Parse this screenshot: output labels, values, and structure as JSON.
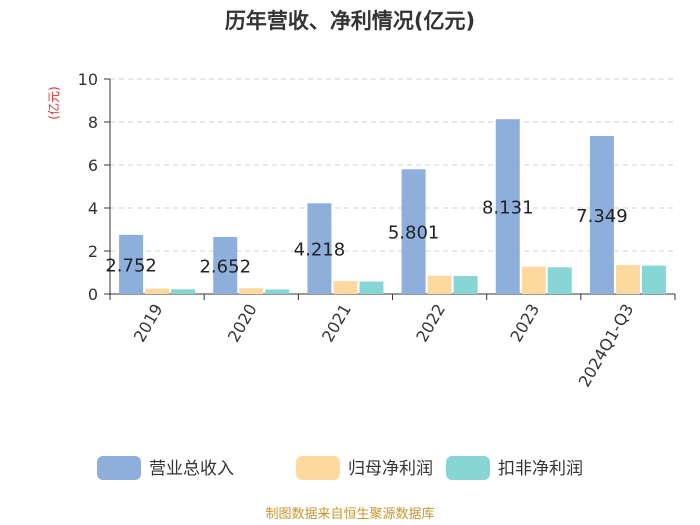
{
  "chart_data": {
    "type": "bar",
    "title": "历年营收、净利情况(亿元)",
    "ylabel": "(亿元)",
    "xlabel": "",
    "ylim": [
      0,
      10
    ],
    "yticks": [
      0,
      2,
      4,
      6,
      8,
      10
    ],
    "grid": true,
    "legend_position": "bottom",
    "categories": [
      "2019",
      "2020",
      "2021",
      "2022",
      "2023",
      "2024Q1-Q3"
    ],
    "series": [
      {
        "name": "营业总收入",
        "color": "#8eaedc",
        "values": [
          2.752,
          2.652,
          4.218,
          5.801,
          8.131,
          7.349
        ],
        "labels": [
          "2.752",
          "2.652",
          "4.218",
          "5.801",
          "8.131",
          "7.349"
        ]
      },
      {
        "name": "归母净利润",
        "color": "#fdd9a0",
        "values": [
          0.25,
          0.27,
          0.6,
          0.85,
          1.27,
          1.35
        ]
      },
      {
        "name": "扣非净利润",
        "color": "#86d6d6",
        "values": [
          0.22,
          0.21,
          0.58,
          0.84,
          1.24,
          1.32
        ]
      }
    ],
    "source": "制图数据来自恒生聚源数据库"
  }
}
